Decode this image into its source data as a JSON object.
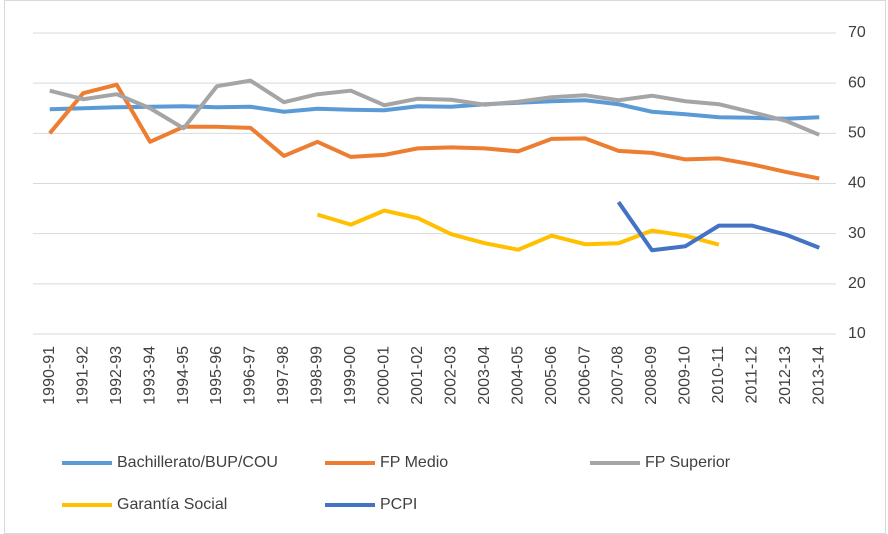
{
  "chart_data": {
    "type": "line",
    "categories": [
      "1990-91",
      "1991-92",
      "1992-93",
      "1993-94",
      "1994-95",
      "1995-96",
      "1996-97",
      "1997-98",
      "1998-99",
      "1999-00",
      "2000-01",
      "2001-02",
      "2002-03",
      "2003-04",
      "2004-05",
      "2005-06",
      "2006-07",
      "2007-08",
      "2008-09",
      "2009-10",
      "2010-11",
      "2011-12",
      "2012-13",
      "2013-14"
    ],
    "series": [
      {
        "name": "Bachillerato/BUP/COU",
        "color": "#5b9bd5",
        "values": [
          54.8,
          55,
          55.2,
          55.3,
          55.4,
          55.2,
          55.3,
          54.3,
          54.9,
          54.7,
          54.6,
          55.4,
          55.3,
          55.8,
          56.1,
          56.4,
          56.6,
          55.8,
          54.3,
          53.8,
          53.2,
          53.1,
          52.9,
          53.2
        ]
      },
      {
        "name": "FP Medio",
        "color": "#ed7d31",
        "values": [
          50,
          58,
          59.7,
          48.3,
          51.3,
          51.3,
          51.1,
          45.5,
          48.3,
          45.3,
          45.7,
          47,
          47.2,
          47,
          46.4,
          48.9,
          49,
          46.5,
          46.1,
          44.8,
          45,
          43.8,
          42.3,
          41
        ]
      },
      {
        "name": "FP Superior",
        "color": "#a5a5a5",
        "values": [
          58.5,
          56.8,
          57.8,
          55,
          51,
          59.4,
          60.5,
          56.2,
          57.8,
          58.5,
          55.6,
          56.9,
          56.7,
          55.7,
          56.3,
          57.2,
          57.6,
          56.6,
          57.5,
          56.4,
          55.8,
          54.2,
          52.5,
          49.7
        ]
      },
      {
        "name": "Garantía Social",
        "color": "#ffc000",
        "values": [
          null,
          null,
          null,
          null,
          null,
          null,
          null,
          null,
          33.8,
          31.8,
          34.6,
          33.1,
          29.9,
          28.1,
          26.8,
          29.6,
          27.9,
          28.1,
          30.6,
          29.6,
          27.8,
          null,
          null,
          null
        ]
      },
      {
        "name": "PCPI",
        "color": "#4472c4",
        "values": [
          null,
          null,
          null,
          null,
          null,
          null,
          null,
          null,
          null,
          null,
          null,
          null,
          null,
          null,
          null,
          null,
          null,
          36.3,
          26.7,
          27.5,
          31.6,
          31.6,
          29.8,
          27.2
        ]
      }
    ],
    "ylim": [
      10,
      70
    ],
    "yticks": [
      10,
      20,
      30,
      40,
      50,
      60,
      70
    ],
    "grid": true
  }
}
